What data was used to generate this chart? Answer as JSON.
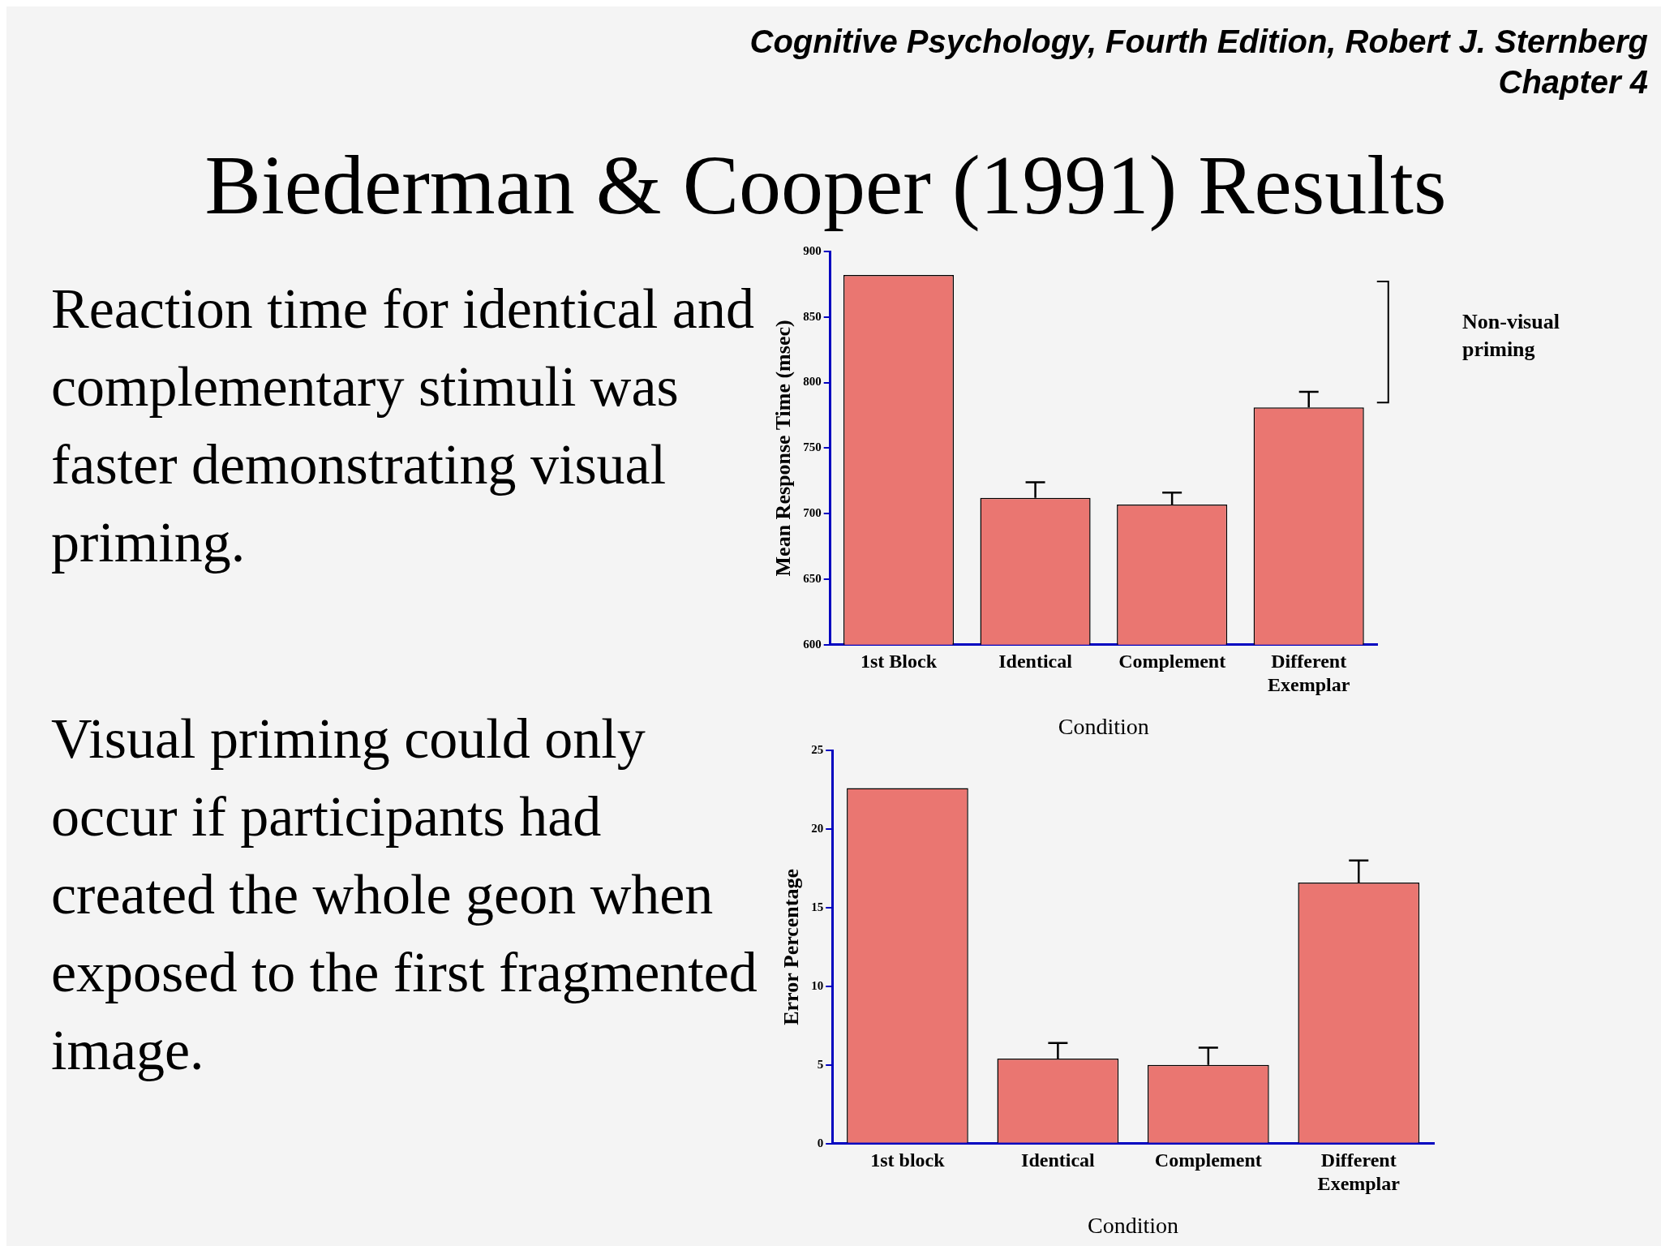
{
  "chart_data": [
    {
      "type": "bar",
      "title": "Biederman & Cooper (1991) Results",
      "categories": [
        "1st Block",
        "Identical",
        "Complement",
        "Different Exemplar"
      ],
      "values": [
        882,
        712,
        707,
        781
      ],
      "color": "#ea7671",
      "errors": [
        null,
        [
          712,
          724
        ],
        [
          707,
          716
        ],
        [
          781,
          793
        ]
      ],
      "ylim": [
        600,
        900
      ],
      "yticks": [
        600,
        650,
        700,
        750,
        800,
        850,
        900
      ],
      "ylabel": "Mean Response Time (msec)",
      "xlabel": "Condition",
      "grid": false,
      "legend": false,
      "annotations": [
        "Cognitive Psychology, Fourth Edition, Robert J. Sternberg",
        "Chapter 4",
        "Reaction time for identical and complementary stimuli was faster demonstrating visual priming.",
        "Non-visual priming"
      ]
    },
    {
      "type": "bar",
      "categories": [
        "1st block",
        "Identical",
        "Complement",
        "Different Exemplar"
      ],
      "values": [
        22.6,
        5.4,
        5.0,
        16.6
      ],
      "color": "#ea7671",
      "errors": [
        null,
        [
          5.4,
          6.4
        ],
        [
          5.0,
          6.1
        ],
        [
          16.6,
          18.0
        ]
      ],
      "ylim": [
        0,
        25
      ],
      "yticks": [
        0,
        5,
        10,
        15,
        20,
        25
      ],
      "ylabel": "Error Percentage",
      "xlabel": "Condition",
      "grid": false,
      "legend": false,
      "annotations": [
        "Visual priming could only occur if participants had created the whole geon when exposed to the first fragmented image."
      ]
    }
  ]
}
